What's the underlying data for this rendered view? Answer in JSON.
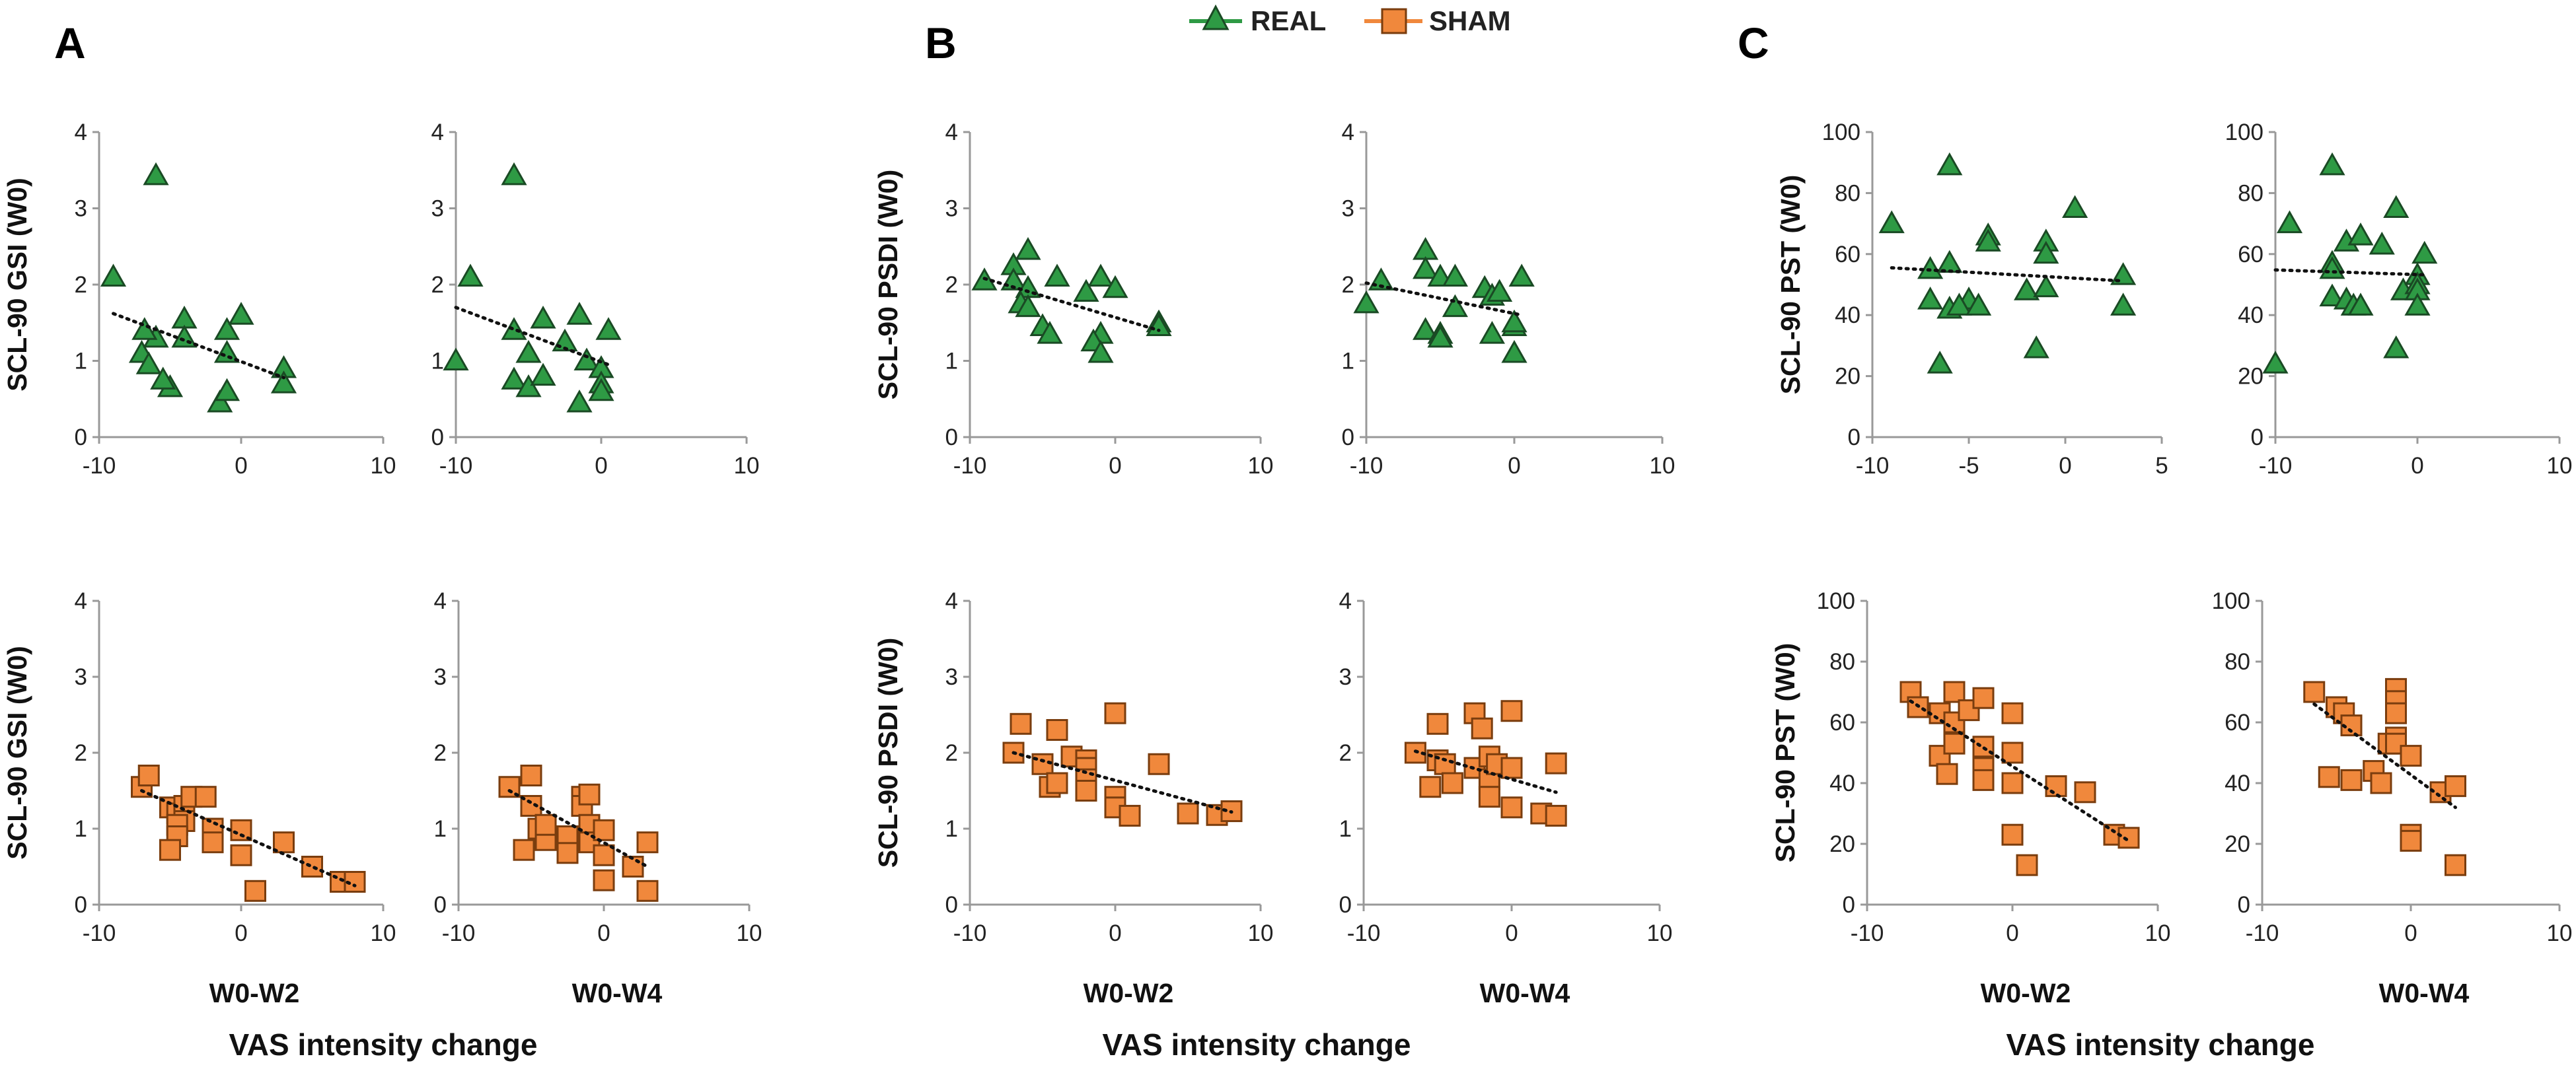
{
  "legend": {
    "real": {
      "label": "REAL",
      "color": "#2e9a44",
      "marker": "triangle"
    },
    "sham": {
      "label": "SHAM",
      "color": "#f0883c",
      "marker": "square"
    }
  },
  "panel_letters": [
    "A",
    "B",
    "C"
  ],
  "column_labels": [
    "W0-W2",
    "W0-W4"
  ],
  "bottom_label": "VAS intensity change",
  "chart_data": [
    {
      "id": "A-real-w2",
      "type": "scatter",
      "panel": "A",
      "group": "REAL",
      "xlabel": "",
      "ylabel": "SCL-90 GSI (W0)",
      "xlim": [
        -10,
        10
      ],
      "xticks": [
        -10,
        0,
        10
      ],
      "ylim": [
        0,
        4
      ],
      "yticks": [
        0,
        1,
        2,
        3,
        4
      ],
      "points": [
        [
          -9,
          2.1
        ],
        [
          -7,
          1.1
        ],
        [
          -6,
          3.43
        ],
        [
          -6,
          1.3
        ],
        [
          -5,
          0.65
        ],
        [
          -4,
          1.55
        ],
        [
          -4,
          1.3
        ],
        [
          -1,
          1.4
        ],
        [
          0,
          1.6
        ],
        [
          -1,
          1.1
        ],
        [
          -1.5,
          0.45
        ],
        [
          -1,
          0.6
        ],
        [
          3,
          0.9
        ],
        [
          3,
          0.7
        ],
        [
          -6.5,
          0.95
        ],
        [
          -5.5,
          0.75
        ],
        [
          -6.8,
          1.4
        ]
      ],
      "trend": [
        [
          -9,
          1.62
        ],
        [
          3,
          0.78
        ]
      ]
    },
    {
      "id": "A-real-w4",
      "type": "scatter",
      "panel": "A",
      "group": "REAL",
      "xlabel": "",
      "ylabel": "",
      "xlim": [
        -10,
        10
      ],
      "xticks": [
        -10,
        0,
        10
      ],
      "ylim": [
        0,
        4
      ],
      "yticks": [
        0,
        1,
        2,
        3,
        4
      ],
      "points": [
        [
          -9,
          2.1
        ],
        [
          -10,
          1.0
        ],
        [
          -6,
          3.43
        ],
        [
          -6,
          1.4
        ],
        [
          -6,
          0.75
        ],
        [
          -5,
          1.1
        ],
        [
          -5,
          0.65
        ],
        [
          -4,
          1.55
        ],
        [
          -4,
          0.8
        ],
        [
          -2.5,
          1.25
        ],
        [
          -1.5,
          1.6
        ],
        [
          -1,
          1.0
        ],
        [
          -1.5,
          0.45
        ],
        [
          0,
          0.9
        ],
        [
          0,
          0.7
        ],
        [
          0,
          0.6
        ],
        [
          0.5,
          1.4
        ]
      ],
      "trend": [
        [
          -10,
          1.7
        ],
        [
          0.5,
          0.95
        ]
      ]
    },
    {
      "id": "B-real-w2",
      "type": "scatter",
      "panel": "B",
      "group": "REAL",
      "xlabel": "",
      "ylabel": "SCL-90 PSDI (W0)",
      "xlim": [
        -10,
        10
      ],
      "xticks": [
        -10,
        0,
        10
      ],
      "ylim": [
        0,
        4
      ],
      "yticks": [
        0,
        1,
        2,
        3,
        4
      ],
      "points": [
        [
          -9,
          2.05
        ],
        [
          -7,
          2.25
        ],
        [
          -7,
          2.05
        ],
        [
          -6,
          2.45
        ],
        [
          -6,
          1.95
        ],
        [
          -6.5,
          1.75
        ],
        [
          -6,
          1.7
        ],
        [
          -5,
          1.45
        ],
        [
          -4.5,
          1.35
        ],
        [
          -4,
          2.1
        ],
        [
          -2,
          1.9
        ],
        [
          -1,
          2.1
        ],
        [
          0,
          1.95
        ],
        [
          -1,
          1.35
        ],
        [
          -1.5,
          1.25
        ],
        [
          -1,
          1.1
        ],
        [
          3,
          1.5
        ],
        [
          3,
          1.45
        ]
      ],
      "trend": [
        [
          -9,
          2.08
        ],
        [
          3,
          1.4
        ]
      ]
    },
    {
      "id": "B-real-w4",
      "type": "scatter",
      "panel": "B",
      "group": "REAL",
      "xlabel": "",
      "ylabel": "",
      "xlim": [
        -10,
        10
      ],
      "xticks": [
        -10,
        0,
        10
      ],
      "ylim": [
        0,
        4
      ],
      "yticks": [
        0,
        1,
        2,
        3,
        4
      ],
      "points": [
        [
          -9,
          2.05
        ],
        [
          -10,
          1.75
        ],
        [
          -6,
          2.45
        ],
        [
          -6,
          2.2
        ],
        [
          -5,
          2.1
        ],
        [
          -6,
          1.4
        ],
        [
          -5,
          1.35
        ],
        [
          -5,
          1.3
        ],
        [
          -4,
          2.1
        ],
        [
          -4,
          1.7
        ],
        [
          -2,
          1.95
        ],
        [
          -1.5,
          1.85
        ],
        [
          -1,
          1.9
        ],
        [
          -1.5,
          1.35
        ],
        [
          0,
          1.45
        ],
        [
          0,
          1.5
        ],
        [
          0,
          1.1
        ],
        [
          0.5,
          2.1
        ]
      ],
      "trend": [
        [
          -10,
          2.02
        ],
        [
          0.5,
          1.6
        ]
      ]
    },
    {
      "id": "C-real-w2",
      "type": "scatter",
      "panel": "C",
      "group": "REAL",
      "xlabel": "",
      "ylabel": "SCL-90 PST (W0)",
      "xlim": [
        -10,
        5
      ],
      "xticks": [
        -10,
        -5,
        0,
        5
      ],
      "ylim": [
        0,
        100
      ],
      "yticks": [
        0,
        20,
        40,
        60,
        80,
        100
      ],
      "points": [
        [
          -9,
          70
        ],
        [
          -7,
          55
        ],
        [
          -7,
          45
        ],
        [
          -6,
          89
        ],
        [
          -6,
          57
        ],
        [
          -6,
          42
        ],
        [
          -6.5,
          24
        ],
        [
          -5,
          45
        ],
        [
          -5.5,
          43
        ],
        [
          -4,
          66
        ],
        [
          -4,
          64
        ],
        [
          -4.5,
          43
        ],
        [
          -2,
          48
        ],
        [
          -1,
          64
        ],
        [
          -1,
          60
        ],
        [
          -1,
          49
        ],
        [
          -1.5,
          29
        ],
        [
          0.5,
          75
        ],
        [
          3,
          53
        ],
        [
          3,
          43
        ]
      ],
      "trend": [
        [
          -9,
          55.5
        ],
        [
          3,
          51.2
        ]
      ]
    },
    {
      "id": "C-real-w4",
      "type": "scatter",
      "panel": "C",
      "group": "REAL",
      "xlabel": "",
      "ylabel": "",
      "xlim": [
        -10,
        10
      ],
      "xticks": [
        -10,
        0,
        10
      ],
      "ylim": [
        0,
        100
      ],
      "yticks": [
        0,
        20,
        40,
        60,
        80,
        100
      ],
      "points": [
        [
          -9,
          70
        ],
        [
          -10,
          24
        ],
        [
          -6,
          89
        ],
        [
          -6,
          57
        ],
        [
          -6,
          55
        ],
        [
          -6,
          46
        ],
        [
          -5,
          64
        ],
        [
          -5,
          45
        ],
        [
          -4.5,
          43
        ],
        [
          -4,
          66
        ],
        [
          -4,
          43
        ],
        [
          -2.5,
          63
        ],
        [
          -1.5,
          75
        ],
        [
          -1,
          48
        ],
        [
          -1.5,
          29
        ],
        [
          0,
          53
        ],
        [
          0,
          50
        ],
        [
          0,
          48
        ],
        [
          0,
          43
        ],
        [
          0.5,
          60
        ]
      ],
      "trend": [
        [
          -10,
          54.8
        ],
        [
          0.5,
          53.2
        ]
      ]
    },
    {
      "id": "A-sham-w2",
      "type": "scatter",
      "panel": "A",
      "group": "SHAM",
      "xlabel": "W0-W2",
      "ylabel": "SCL-90 GSI (W0)",
      "xlim": [
        -10,
        10
      ],
      "xticks": [
        -10,
        0,
        10
      ],
      "ylim": [
        0,
        4
      ],
      "yticks": [
        0,
        1,
        2,
        3,
        4
      ],
      "points": [
        [
          -7,
          1.55
        ],
        [
          -6.5,
          1.7
        ],
        [
          -5,
          1.28
        ],
        [
          -4.5,
          1.2
        ],
        [
          -4,
          1.3
        ],
        [
          -3.5,
          1.42
        ],
        [
          -2.5,
          1.42
        ],
        [
          -4,
          1.1
        ],
        [
          -4.5,
          1.05
        ],
        [
          -4.5,
          0.9
        ],
        [
          -5,
          0.72
        ],
        [
          -2,
          1.0
        ],
        [
          -2,
          0.82
        ],
        [
          0,
          0.98
        ],
        [
          0,
          0.65
        ],
        [
          1,
          0.18
        ],
        [
          3,
          0.82
        ],
        [
          5,
          0.5
        ],
        [
          7,
          0.3
        ],
        [
          8,
          0.3
        ]
      ],
      "trend": [
        [
          -7,
          1.5
        ],
        [
          8,
          0.25
        ]
      ]
    },
    {
      "id": "A-sham-w4",
      "type": "scatter",
      "panel": "A",
      "group": "SHAM",
      "xlabel": "W0-W4",
      "ylabel": "",
      "xlim": [
        -10,
        10
      ],
      "xticks": [
        -10,
        0,
        10
      ],
      "ylim": [
        0,
        4
      ],
      "yticks": [
        0,
        1,
        2,
        3,
        4
      ],
      "points": [
        [
          -6.5,
          1.55
        ],
        [
          -5,
          1.7
        ],
        [
          -5,
          1.3
        ],
        [
          -4.5,
          1.0
        ],
        [
          -4,
          0.85
        ],
        [
          -5.5,
          0.72
        ],
        [
          -4,
          1.05
        ],
        [
          -2.5,
          0.9
        ],
        [
          -2.5,
          0.68
        ],
        [
          -1.5,
          1.42
        ],
        [
          -1.5,
          1.3
        ],
        [
          -1,
          1.45
        ],
        [
          -1,
          1.05
        ],
        [
          -1,
          0.82
        ],
        [
          0,
          0.98
        ],
        [
          0,
          0.65
        ],
        [
          0,
          0.32
        ],
        [
          2,
          0.5
        ],
        [
          3,
          0.82
        ],
        [
          3,
          0.18
        ]
      ],
      "trend": [
        [
          -6.5,
          1.5
        ],
        [
          3,
          0.5
        ]
      ]
    },
    {
      "id": "B-sham-w2",
      "type": "scatter",
      "panel": "B",
      "group": "SHAM",
      "xlabel": "W0-W2",
      "ylabel": "SCL-90 PSDI (W0)",
      "xlim": [
        -10,
        10
      ],
      "xticks": [
        -10,
        0,
        10
      ],
      "ylim": [
        0,
        4
      ],
      "yticks": [
        0,
        1,
        2,
        3,
        4
      ],
      "points": [
        [
          -7,
          2.0
        ],
        [
          -6.5,
          2.38
        ],
        [
          -5,
          1.85
        ],
        [
          -4.5,
          1.55
        ],
        [
          -4,
          2.3
        ],
        [
          -3,
          1.95
        ],
        [
          -2,
          1.9
        ],
        [
          -2,
          1.8
        ],
        [
          -2,
          1.65
        ],
        [
          -2,
          1.5
        ],
        [
          -4,
          1.6
        ],
        [
          0,
          2.52
        ],
        [
          0,
          1.42
        ],
        [
          0,
          1.28
        ],
        [
          1,
          1.17
        ],
        [
          3,
          1.85
        ],
        [
          5,
          1.2
        ],
        [
          7,
          1.18
        ],
        [
          8,
          1.23
        ]
      ],
      "trend": [
        [
          -7,
          2.0
        ],
        [
          8,
          1.22
        ]
      ]
    },
    {
      "id": "B-sham-w4",
      "type": "scatter",
      "panel": "B",
      "group": "SHAM",
      "xlabel": "W0-W4",
      "ylabel": "",
      "xlim": [
        -10,
        10
      ],
      "xticks": [
        -10,
        0,
        10
      ],
      "ylim": [
        0,
        4
      ],
      "yticks": [
        0,
        1,
        2,
        3,
        4
      ],
      "points": [
        [
          -6.5,
          2.0
        ],
        [
          -5,
          2.38
        ],
        [
          -5,
          1.9
        ],
        [
          -4.5,
          1.85
        ],
        [
          -4,
          1.6
        ],
        [
          -5.5,
          1.55
        ],
        [
          -2.5,
          2.52
        ],
        [
          -2,
          2.32
        ],
        [
          -2.5,
          1.8
        ],
        [
          -1.5,
          1.95
        ],
        [
          -1.5,
          1.65
        ],
        [
          -1.5,
          1.42
        ],
        [
          -1,
          1.85
        ],
        [
          0,
          2.55
        ],
        [
          0,
          1.8
        ],
        [
          0,
          1.28
        ],
        [
          2,
          1.2
        ],
        [
          3,
          1.17
        ],
        [
          3,
          1.86
        ]
      ],
      "trend": [
        [
          -6.5,
          2.02
        ],
        [
          3,
          1.48
        ]
      ]
    },
    {
      "id": "C-sham-w2",
      "type": "scatter",
      "panel": "C",
      "group": "SHAM",
      "xlabel": "W0-W2",
      "ylabel": "SCL-90 PST (W0)",
      "xlim": [
        -10,
        10
      ],
      "xticks": [
        -10,
        0,
        10
      ],
      "ylim": [
        0,
        100
      ],
      "yticks": [
        0,
        20,
        40,
        60,
        80,
        100
      ],
      "points": [
        [
          -7,
          70
        ],
        [
          -6.5,
          65
        ],
        [
          -5,
          63
        ],
        [
          -5,
          49
        ],
        [
          -4,
          70
        ],
        [
          -4,
          60
        ],
        [
          -4,
          53
        ],
        [
          -4.5,
          43
        ],
        [
          -3,
          64
        ],
        [
          -2,
          68
        ],
        [
          -2,
          52
        ],
        [
          -2,
          45
        ],
        [
          -2,
          41
        ],
        [
          0,
          63
        ],
        [
          0,
          50
        ],
        [
          0,
          40
        ],
        [
          0,
          23
        ],
        [
          1,
          13
        ],
        [
          3,
          39
        ],
        [
          5,
          37
        ],
        [
          7,
          23
        ],
        [
          8,
          22
        ]
      ],
      "trend": [
        [
          -7,
          67
        ],
        [
          8,
          21
        ]
      ]
    },
    {
      "id": "C-sham-w4",
      "type": "scatter",
      "panel": "C",
      "group": "SHAM",
      "xlabel": "W0-W4",
      "ylabel": "",
      "xlim": [
        -10,
        10
      ],
      "xticks": [
        -10,
        0,
        10
      ],
      "ylim": [
        0,
        100
      ],
      "yticks": [
        0,
        20,
        40,
        60,
        80,
        100
      ],
      "points": [
        [
          -6.5,
          70
        ],
        [
          -5,
          65
        ],
        [
          -4.5,
          63
        ],
        [
          -4,
          59
        ],
        [
          -5.5,
          42
        ],
        [
          -4,
          41
        ],
        [
          -2.5,
          44
        ],
        [
          -2,
          40
        ],
        [
          -1.5,
          53
        ],
        [
          -1,
          71
        ],
        [
          -1,
          67
        ],
        [
          -1,
          63
        ],
        [
          -1,
          55
        ],
        [
          -1,
          53
        ],
        [
          0,
          23
        ],
        [
          0,
          21
        ],
        [
          0,
          49
        ],
        [
          2,
          37
        ],
        [
          3,
          39
        ],
        [
          3,
          13
        ]
      ],
      "trend": [
        [
          -6.5,
          66
        ],
        [
          3,
          32
        ]
      ]
    }
  ]
}
